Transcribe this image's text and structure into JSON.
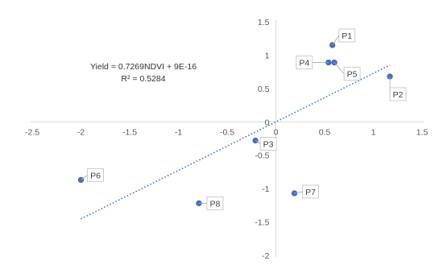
{
  "chart_data": {
    "type": "scatter",
    "title": "",
    "xlabel": "",
    "ylabel": "",
    "xlim": [
      -2.5,
      1.5
    ],
    "ylim": [
      -2,
      1.5
    ],
    "x_ticks": [
      -2.5,
      -2,
      -1.5,
      -1,
      -0.5,
      0,
      0.5,
      1,
      1.5
    ],
    "y_ticks": [
      -2,
      -1.5,
      -1,
      -0.5,
      0,
      0.5,
      1,
      1.5
    ],
    "x_tick_labels": [
      "-2.5",
      "-2",
      "-1.5",
      "-1",
      "-0.5",
      "0",
      "0.5",
      "1",
      "1.5"
    ],
    "y_tick_labels": [
      "-2",
      "-1.5",
      "-1",
      "-0.5",
      "0",
      "0.5",
      "1",
      "1.5"
    ],
    "grid": false,
    "points": [
      {
        "label": "P1",
        "x": 0.58,
        "y": 1.15
      },
      {
        "label": "P2",
        "x": 1.17,
        "y": 0.68
      },
      {
        "label": "P3",
        "x": -0.21,
        "y": -0.28
      },
      {
        "label": "P4",
        "x": 0.54,
        "y": 0.89
      },
      {
        "label": "P5",
        "x": 0.6,
        "y": 0.89
      },
      {
        "label": "P6",
        "x": -2.0,
        "y": -0.87
      },
      {
        "label": "P7",
        "x": 0.19,
        "y": -1.07
      },
      {
        "label": "P8",
        "x": -0.79,
        "y": -1.22
      }
    ],
    "trendline": {
      "type": "linear",
      "slope": 0.7269,
      "intercept": 0,
      "x_range": [
        -2.0,
        1.17
      ],
      "equation_text": "Yield = 0.7269NDVI + 9E-16",
      "r2_text": "R² = 0.5284"
    },
    "colors": {
      "marker": "#4472C4",
      "trendline": "#4472C4",
      "axis": "#D9D9D9",
      "label_border": "#BFBFBF"
    }
  }
}
